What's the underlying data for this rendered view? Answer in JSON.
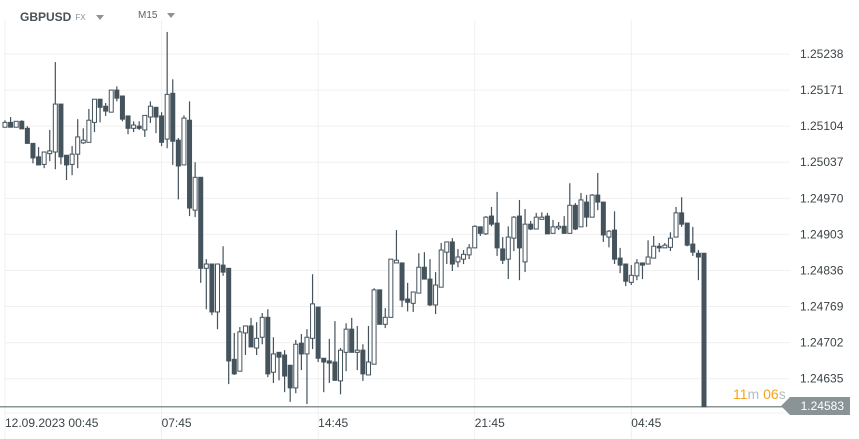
{
  "header": {
    "symbol": "GBPUSD",
    "symbol_type": "FX",
    "timeframe": "M15"
  },
  "countdown": {
    "minutes": "11",
    "m": "m",
    "seconds": "06",
    "s": "s"
  },
  "current_price": "1.24583",
  "colors": {
    "candle": "#44535c",
    "grid": "#f0f0f0",
    "baseline": "#8a9396",
    "countdown": "#f7a21b",
    "price_tag": "#8a9396"
  },
  "chart_data": {
    "type": "candlestick",
    "symbol": "GBPUSD",
    "interval": "M15",
    "y_ticks": [
      "1.25238",
      "1.25171",
      "1.25104",
      "1.25037",
      "1.24970",
      "1.24903",
      "1.24836",
      "1.24769",
      "1.24702",
      "1.24635"
    ],
    "x_ticks": [
      {
        "label": "12.09.2023  00:45",
        "index": 0
      },
      {
        "label": "07:45",
        "index": 28
      },
      {
        "label": "14:45",
        "index": 56
      },
      {
        "label": "21:45",
        "index": 84
      },
      {
        "label": "04:45",
        "index": 112
      }
    ],
    "ylim": [
      1.24583,
      1.2529
    ],
    "grid": true,
    "ohlc_columns": [
      "open",
      "high",
      "low",
      "close"
    ],
    "candles": [
      [
        1.25102,
        1.25115,
        1.25102,
        1.25111
      ],
      [
        1.25111,
        1.25121,
        1.25102,
        1.25102
      ],
      [
        1.25102,
        1.25113,
        1.25102,
        1.25113
      ],
      [
        1.25113,
        1.25115,
        1.25099,
        1.25099
      ],
      [
        1.251,
        1.25104,
        1.25072,
        1.25072
      ],
      [
        1.25072,
        1.25072,
        1.25035,
        1.25045
      ],
      [
        1.25047,
        1.25065,
        1.25032,
        1.25032
      ],
      [
        1.25033,
        1.25056,
        1.25026,
        1.25056
      ],
      [
        1.25053,
        1.25097,
        1.25039,
        1.25058
      ],
      [
        1.25056,
        1.25223,
        1.25024,
        1.25145
      ],
      [
        1.25145,
        1.25145,
        1.25033,
        1.25047
      ],
      [
        1.2505,
        1.2505,
        1.25004,
        1.25032
      ],
      [
        1.25033,
        1.25067,
        1.25013,
        1.25052
      ],
      [
        1.25052,
        1.25117,
        1.25026,
        1.25084
      ],
      [
        1.25073,
        1.251,
        1.25071,
        1.25078
      ],
      [
        1.25074,
        1.25136,
        1.25074,
        1.25115
      ],
      [
        1.25111,
        1.25154,
        1.25093,
        1.25154
      ],
      [
        1.25154,
        1.25154,
        1.25111,
        1.25139
      ],
      [
        1.25141,
        1.25147,
        1.25123,
        1.25132
      ],
      [
        1.2513,
        1.25171,
        1.2513,
        1.25171
      ],
      [
        1.25171,
        1.25178,
        1.2515,
        1.25156
      ],
      [
        1.2516,
        1.2516,
        1.25113,
        1.25117
      ],
      [
        1.25123,
        1.25123,
        1.25089,
        1.251
      ],
      [
        1.251,
        1.25113,
        1.25093,
        1.25106
      ],
      [
        1.25104,
        1.25113,
        1.25097,
        1.251
      ],
      [
        1.25097,
        1.25124,
        1.25084,
        1.25124
      ],
      [
        1.25121,
        1.2515,
        1.2511,
        1.25141
      ],
      [
        1.25139,
        1.25139,
        1.25091,
        1.25121
      ],
      [
        1.25123,
        1.2513,
        1.25067,
        1.25074
      ],
      [
        1.2508,
        1.25279,
        1.25063,
        1.25163
      ],
      [
        1.25165,
        1.25191,
        1.25032,
        1.25076
      ],
      [
        1.25078,
        1.25082,
        1.24968,
        1.2503
      ],
      [
        1.25032,
        1.25124,
        1.25032,
        1.25119
      ],
      [
        1.25115,
        1.2515,
        1.24937,
        1.24952
      ],
      [
        1.24948,
        1.25037,
        1.24935,
        1.25009
      ],
      [
        1.25009,
        1.25009,
        1.24813,
        1.2484
      ],
      [
        1.2484,
        1.24857,
        1.24764,
        1.24848
      ],
      [
        1.24848,
        1.24848,
        1.24753,
        1.24759
      ],
      [
        1.24759,
        1.24848,
        1.24727,
        1.24848
      ],
      [
        1.24846,
        1.24881,
        1.24826,
        1.24833
      ],
      [
        1.2484,
        1.2484,
        1.24625,
        1.24668
      ],
      [
        1.24671,
        1.2472,
        1.24642,
        1.24644
      ],
      [
        1.24649,
        1.24731,
        1.24649,
        1.24722
      ],
      [
        1.2472,
        1.24733,
        1.24679,
        1.24733
      ],
      [
        1.24733,
        1.24748,
        1.24694,
        1.24694
      ],
      [
        1.24692,
        1.2474,
        1.24679,
        1.2471
      ],
      [
        1.24712,
        1.24757,
        1.24699,
        1.24749
      ],
      [
        1.24749,
        1.24764,
        1.24638,
        1.24644
      ],
      [
        1.24647,
        1.24712,
        1.24627,
        1.24681
      ],
      [
        1.24684,
        1.24684,
        1.24632,
        1.24675
      ],
      [
        1.24679,
        1.24688,
        1.2461,
        1.2464
      ],
      [
        1.2466,
        1.2466,
        1.24592,
        1.24618
      ],
      [
        1.24618,
        1.24707,
        1.24608,
        1.24699
      ],
      [
        1.24701,
        1.24718,
        1.24651,
        1.24681
      ],
      [
        1.24681,
        1.24727,
        1.24588,
        1.24712
      ],
      [
        1.2471,
        1.24829,
        1.2469,
        1.24774
      ],
      [
        1.24768,
        1.24768,
        1.24666,
        1.24673
      ],
      [
        1.24673,
        1.24673,
        1.2461,
        1.24666
      ],
      [
        1.24668,
        1.24709,
        1.24627,
        1.24664
      ],
      [
        1.24666,
        1.24742,
        1.24632,
        1.24632
      ],
      [
        1.24631,
        1.24692,
        1.24606,
        1.24688
      ],
      [
        1.24684,
        1.24738,
        1.24649,
        1.24727
      ],
      [
        1.24727,
        1.24748,
        1.24684,
        1.24684
      ],
      [
        1.24684,
        1.24733,
        1.24651,
        1.24688
      ],
      [
        1.24688,
        1.24699,
        1.24631,
        1.24644
      ],
      [
        1.24642,
        1.24733,
        1.24642,
        1.24666
      ],
      [
        1.24662,
        1.24803,
        1.24662,
        1.248
      ],
      [
        1.248,
        1.248,
        1.24736,
        1.24736
      ],
      [
        1.24736,
        1.24766,
        1.24729,
        1.24749
      ],
      [
        1.24749,
        1.24857,
        1.24749,
        1.24857
      ],
      [
        1.2485,
        1.24911,
        1.2485,
        1.24855
      ],
      [
        1.2485,
        1.2485,
        1.24768,
        1.24781
      ],
      [
        1.24783,
        1.24813,
        1.2476,
        1.24777
      ],
      [
        1.24775,
        1.24796,
        1.24759,
        1.24796
      ],
      [
        1.24794,
        1.24868,
        1.24794,
        1.24842
      ],
      [
        1.24842,
        1.2487,
        1.2482,
        1.2482
      ],
      [
        1.2482,
        1.24857,
        1.2477,
        1.24772
      ],
      [
        1.24772,
        1.24833,
        1.24755,
        1.24809
      ],
      [
        1.24805,
        1.24887,
        1.24805,
        1.24874
      ],
      [
        1.2487,
        1.24889,
        1.24848,
        1.24889
      ],
      [
        1.24889,
        1.24896,
        1.24835,
        1.24848
      ],
      [
        1.24852,
        1.24876,
        1.24842,
        1.24861
      ],
      [
        1.24857,
        1.24874,
        1.24848,
        1.24866
      ],
      [
        1.24865,
        1.24885,
        1.24857,
        1.24878
      ],
      [
        1.24878,
        1.2492,
        1.24878,
        1.24918
      ],
      [
        1.24917,
        1.24918,
        1.249,
        1.24905
      ],
      [
        1.24904,
        1.24937,
        1.24902,
        1.24935
      ],
      [
        1.24937,
        1.24954,
        1.24918,
        1.24922
      ],
      [
        1.24924,
        1.24982,
        1.24863,
        1.24878
      ],
      [
        1.24876,
        1.24898,
        1.24848,
        1.24855
      ],
      [
        1.24857,
        1.24918,
        1.2482,
        1.24898
      ],
      [
        1.24896,
        1.24937,
        1.24872,
        1.24935
      ],
      [
        1.24937,
        1.24967,
        1.24818,
        1.24878
      ],
      [
        1.24852,
        1.2495,
        1.24833,
        1.24922
      ],
      [
        1.24922,
        1.24928,
        1.24911,
        1.24913
      ],
      [
        1.24913,
        1.24943,
        1.24913,
        1.24935
      ],
      [
        1.24931,
        1.24944,
        1.24931,
        1.24935
      ],
      [
        1.24937,
        1.24943,
        1.24904,
        1.24904
      ],
      [
        1.24905,
        1.2493,
        1.24905,
        1.24917
      ],
      [
        1.24915,
        1.24926,
        1.24911,
        1.24918
      ],
      [
        1.24918,
        1.24937,
        1.24904,
        1.24905
      ],
      [
        1.24905,
        1.24998,
        1.24905,
        1.24957
      ],
      [
        1.24957,
        1.24961,
        1.24911,
        1.24913
      ],
      [
        1.24917,
        1.2498,
        1.24917,
        1.24967
      ],
      [
        1.24963,
        1.24976,
        1.24917,
        1.24935
      ],
      [
        1.24935,
        1.24978,
        1.24935,
        1.24976
      ],
      [
        1.24976,
        1.25017,
        1.24948,
        1.24963
      ],
      [
        1.24963,
        1.24963,
        1.24889,
        1.24902
      ],
      [
        1.24898,
        1.24911,
        1.24879,
        1.24909
      ],
      [
        1.24911,
        1.24946,
        1.24848,
        1.24857
      ],
      [
        1.24859,
        1.24878,
        1.24831,
        1.24846
      ],
      [
        1.24848,
        1.24848,
        1.24807,
        1.24816
      ],
      [
        1.24814,
        1.24846,
        1.24809,
        1.24827
      ],
      [
        1.24826,
        1.24857,
        1.24818,
        1.2485
      ],
      [
        1.2485,
        1.2485,
        1.2482,
        1.24846
      ],
      [
        1.24848,
        1.24892,
        1.24848,
        1.24861
      ],
      [
        1.24859,
        1.249,
        1.24859,
        1.24881
      ],
      [
        1.24881,
        1.24887,
        1.2487,
        1.24878
      ],
      [
        1.24878,
        1.24887,
        1.24878,
        1.24883
      ],
      [
        1.24879,
        1.24907,
        1.24872,
        1.24896
      ],
      [
        1.24898,
        1.24954,
        1.24898,
        1.24943
      ],
      [
        1.24943,
        1.24972,
        1.24917,
        1.24922
      ],
      [
        1.24924,
        1.24924,
        1.24881,
        1.24883
      ],
      [
        1.24885,
        1.24917,
        1.24863,
        1.2487
      ],
      [
        1.24868,
        1.24874,
        1.24818,
        1.24861
      ],
      [
        1.24868,
        1.24868,
        1.24583,
        1.24583
      ]
    ]
  }
}
